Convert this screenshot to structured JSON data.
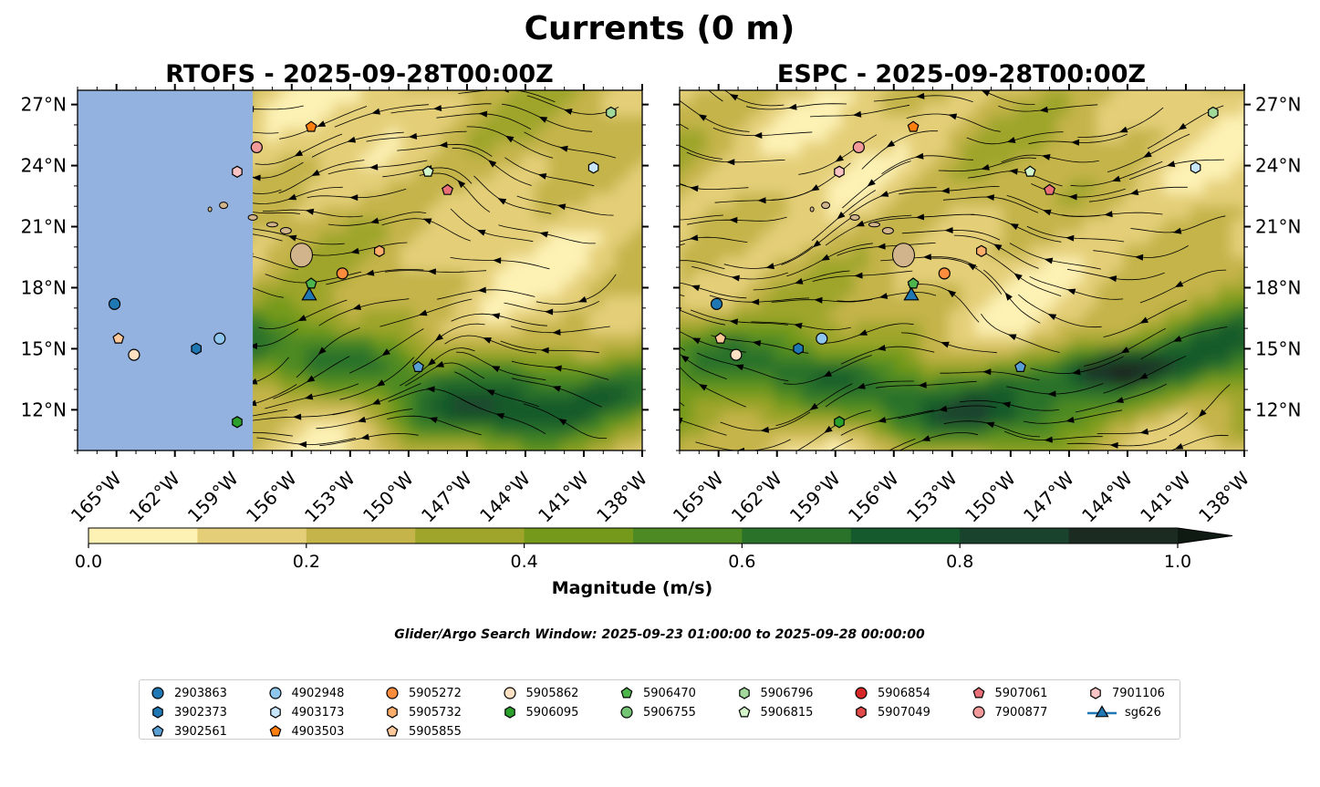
{
  "figure": {
    "title": "Currents (0 m)",
    "search_window": "Glider/Argo Search Window: 2025-09-23 01:00:00 to 2025-09-28 00:00:00"
  },
  "chart_data": [
    {
      "type": "heatmap",
      "title": "RTOFS - 2025-09-28T00:00Z",
      "model": "RTOFS",
      "lon_range": [
        -167,
        -138
      ],
      "lat_range": [
        10,
        27.7
      ],
      "x_ticks": [
        "165°W",
        "162°W",
        "159°W",
        "156°W",
        "153°W",
        "150°W",
        "147°W",
        "144°W",
        "141°W",
        "138°W"
      ],
      "y_ticks": [
        "12°N",
        "15°N",
        "18°N",
        "21°N",
        "24°N",
        "27°N"
      ],
      "land_mask_west_of_lon": -158,
      "markers": [
        {
          "id": "2903863",
          "lon": -165.1,
          "lat": 17.2
        },
        {
          "id": "3902373",
          "lon": -160.9,
          "lat": 15.0
        },
        {
          "id": "3902561",
          "lon": -149.5,
          "lat": 14.1
        },
        {
          "id": "4902948",
          "lon": -159.7,
          "lat": 15.5
        },
        {
          "id": "4903173",
          "lon": -140.5,
          "lat": 23.9
        },
        {
          "id": "4903503",
          "lon": -155.0,
          "lat": 25.9
        },
        {
          "id": "5905272",
          "lon": -153.4,
          "lat": 18.7
        },
        {
          "id": "5905732",
          "lon": -151.5,
          "lat": 19.8
        },
        {
          "id": "5905855",
          "lon": -164.9,
          "lat": 15.5
        },
        {
          "id": "5905862",
          "lon": -164.1,
          "lat": 14.7
        },
        {
          "id": "5906095",
          "lon": -158.8,
          "lat": 11.4
        },
        {
          "id": "5906470",
          "lon": -155.0,
          "lat": 18.2
        },
        {
          "id": "5906796",
          "lon": -139.6,
          "lat": 26.6
        },
        {
          "id": "5906815",
          "lon": -149.0,
          "lat": 23.7
        },
        {
          "id": "5907061",
          "lon": -148.0,
          "lat": 22.8
        },
        {
          "id": "7900877",
          "lon": -157.8,
          "lat": 24.9
        },
        {
          "id": "7901106",
          "lon": -158.8,
          "lat": 23.7
        },
        {
          "id": "sg626",
          "lon": -155.1,
          "lat": 17.6
        }
      ]
    },
    {
      "type": "heatmap",
      "title": "ESPC - 2025-09-28T00:00Z",
      "model": "ESPC",
      "lon_range": [
        -167,
        -138
      ],
      "lat_range": [
        10,
        27.7
      ],
      "x_ticks": [
        "165°W",
        "162°W",
        "159°W",
        "156°W",
        "153°W",
        "150°W",
        "147°W",
        "144°W",
        "141°W",
        "138°W"
      ],
      "y_ticks": [
        "12°N",
        "15°N",
        "18°N",
        "21°N",
        "24°N",
        "27°N"
      ],
      "markers": [
        {
          "id": "2903863",
          "lon": -165.1,
          "lat": 17.2
        },
        {
          "id": "3902373",
          "lon": -160.9,
          "lat": 15.0
        },
        {
          "id": "3902561",
          "lon": -149.5,
          "lat": 14.1
        },
        {
          "id": "4902948",
          "lon": -159.7,
          "lat": 15.5
        },
        {
          "id": "4903173",
          "lon": -140.5,
          "lat": 23.9
        },
        {
          "id": "4903503",
          "lon": -155.0,
          "lat": 25.9
        },
        {
          "id": "5905272",
          "lon": -153.4,
          "lat": 18.7
        },
        {
          "id": "5905732",
          "lon": -151.5,
          "lat": 19.8
        },
        {
          "id": "5905855",
          "lon": -164.9,
          "lat": 15.5
        },
        {
          "id": "5905862",
          "lon": -164.1,
          "lat": 14.7
        },
        {
          "id": "5906095",
          "lon": -158.8,
          "lat": 11.4
        },
        {
          "id": "5906470",
          "lon": -155.0,
          "lat": 18.2
        },
        {
          "id": "5906796",
          "lon": -139.6,
          "lat": 26.6
        },
        {
          "id": "5906815",
          "lon": -149.0,
          "lat": 23.7
        },
        {
          "id": "5907061",
          "lon": -148.0,
          "lat": 22.8
        },
        {
          "id": "7900877",
          "lon": -157.8,
          "lat": 24.9
        },
        {
          "id": "7901106",
          "lon": -158.8,
          "lat": 23.7
        },
        {
          "id": "sg626",
          "lon": -155.1,
          "lat": 17.6
        }
      ]
    }
  ],
  "colorbar": {
    "label": "Magnitude (m/s)",
    "range": [
      0,
      1
    ],
    "ticks": [
      "0.0",
      "0.2",
      "0.4",
      "0.6",
      "0.8",
      "1.0"
    ],
    "colors": [
      "#fdf1b4",
      "#e4cf78",
      "#c4b44a",
      "#9ea52a",
      "#759a1b",
      "#4e8a24",
      "#2a7229",
      "#155a2c",
      "#1a432d",
      "#1c2b21"
    ],
    "extend_color": "#0f1a13"
  },
  "legend": [
    {
      "label": "2903863",
      "marker": "circle",
      "color": "#1f77b4"
    },
    {
      "label": "3902373",
      "marker": "hexagon",
      "color": "#1f77b4"
    },
    {
      "label": "3902561",
      "marker": "pentagon",
      "color": "#5a9fd4"
    },
    {
      "label": "4902948",
      "marker": "circle",
      "color": "#8ec6ee"
    },
    {
      "label": "4903173",
      "marker": "hexagon",
      "color": "#c8e6fb"
    },
    {
      "label": "4903503",
      "marker": "pentagon",
      "color": "#ff7f0e"
    },
    {
      "label": "5905272",
      "marker": "circle",
      "color": "#fd8d3c"
    },
    {
      "label": "5905732",
      "marker": "hexagon",
      "color": "#fdae6b"
    },
    {
      "label": "5905855",
      "marker": "pentagon",
      "color": "#fdc89a"
    },
    {
      "label": "5905862",
      "marker": "circle",
      "color": "#fee0c2"
    },
    {
      "label": "5906095",
      "marker": "hexagon",
      "color": "#2ca02c"
    },
    {
      "label": "5906470",
      "marker": "pentagon",
      "color": "#4cb54c"
    },
    {
      "label": "5906755",
      "marker": "circle",
      "color": "#74c476"
    },
    {
      "label": "5906796",
      "marker": "hexagon",
      "color": "#a1d99b"
    },
    {
      "label": "5906815",
      "marker": "pentagon",
      "color": "#d2f5c9"
    },
    {
      "label": "5906854",
      "marker": "circle",
      "color": "#d62728"
    },
    {
      "label": "5907049",
      "marker": "hexagon",
      "color": "#e04a4b"
    },
    {
      "label": "5907061",
      "marker": "pentagon",
      "color": "#e97078"
    },
    {
      "label": "7900877",
      "marker": "circle",
      "color": "#f29a9a"
    },
    {
      "label": "7901106",
      "marker": "hexagon",
      "color": "#fbc4c4"
    },
    {
      "label": "sg626",
      "marker": "triangle",
      "color": "#1f77b4"
    }
  ]
}
